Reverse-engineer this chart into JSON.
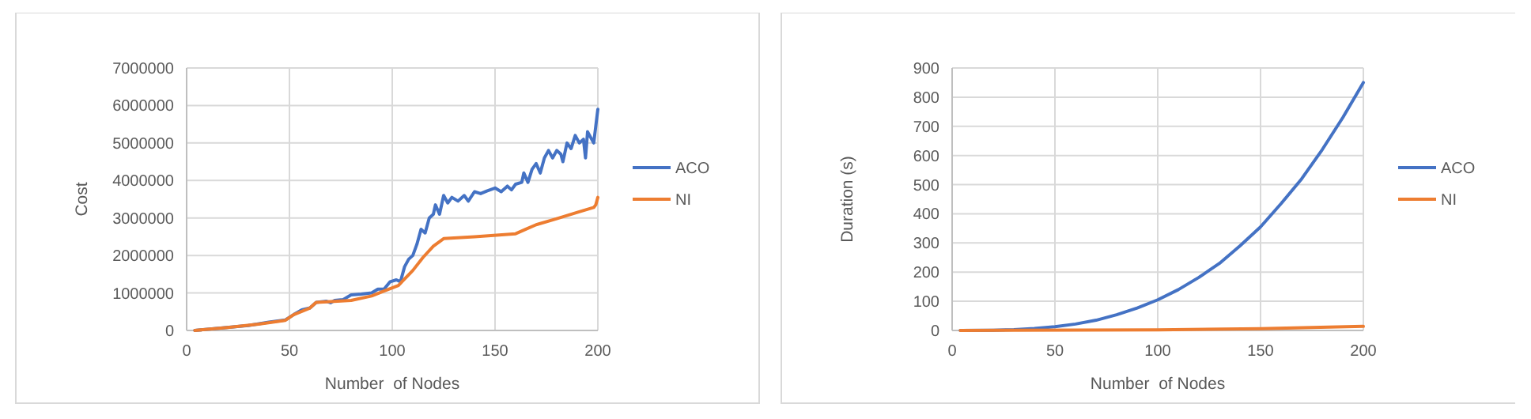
{
  "chart_data": [
    {
      "type": "line",
      "xlabel": "Number  of Nodes",
      "ylabel": "Cost",
      "xlim": [
        0,
        200
      ],
      "xticks": [
        0,
        50,
        100,
        150,
        200
      ],
      "ylim": [
        0,
        7000000
      ],
      "yticks": [
        0,
        1000000,
        2000000,
        3000000,
        4000000,
        5000000,
        6000000,
        7000000
      ],
      "grid": true,
      "legend": "right",
      "marker": "none",
      "line_style": "solid",
      "series": [
        {
          "name": "ACO",
          "color": "#4472c4",
          "x": [
            4,
            30,
            40,
            48,
            52,
            56,
            60,
            63,
            68,
            70,
            72,
            76,
            80,
            85,
            90,
            93,
            96,
            99,
            102,
            104,
            106,
            108,
            110,
            112,
            114,
            116,
            118,
            120,
            121,
            123,
            125,
            127,
            129,
            132,
            135,
            137,
            140,
            143,
            146,
            150,
            153,
            156,
            158,
            160,
            163,
            164,
            166,
            168,
            170,
            172,
            174,
            176,
            178,
            180,
            182,
            183,
            185,
            187,
            189,
            191,
            193,
            194,
            195,
            197,
            198,
            199,
            200
          ],
          "values": [
            0,
            130000,
            220000,
            280000,
            420000,
            550000,
            600000,
            750000,
            780000,
            740000,
            800000,
            820000,
            950000,
            970000,
            1000000,
            1100000,
            1100000,
            1300000,
            1350000,
            1300000,
            1700000,
            1900000,
            2000000,
            2300000,
            2700000,
            2600000,
            3000000,
            3100000,
            3350000,
            3100000,
            3600000,
            3400000,
            3550000,
            3450000,
            3600000,
            3450000,
            3700000,
            3650000,
            3720000,
            3800000,
            3700000,
            3850000,
            3750000,
            3900000,
            3950000,
            4200000,
            3950000,
            4300000,
            4450000,
            4200000,
            4600000,
            4800000,
            4600000,
            4800000,
            4700000,
            4500000,
            5000000,
            4850000,
            5200000,
            5000000,
            5100000,
            4600000,
            5300000,
            5100000,
            5000000,
            5450000,
            5900000
          ]
        },
        {
          "name": "NI",
          "color": "#ed7d31",
          "x": [
            4,
            20,
            35,
            48,
            52,
            60,
            63,
            70,
            80,
            90,
            96,
            103,
            110,
            115,
            120,
            125,
            140,
            160,
            165,
            170,
            180,
            190,
            198,
            199,
            200
          ],
          "values": [
            0,
            80000,
            170000,
            270000,
            420000,
            600000,
            750000,
            770000,
            800000,
            920000,
            1050000,
            1200000,
            1600000,
            1950000,
            2250000,
            2450000,
            2500000,
            2580000,
            2700000,
            2820000,
            2980000,
            3150000,
            3280000,
            3350000,
            3550000
          ]
        }
      ]
    },
    {
      "type": "line",
      "xlabel": "Number  of Nodes",
      "ylabel": "Duration (s)",
      "xlim": [
        0,
        200
      ],
      "xticks": [
        0,
        50,
        100,
        150,
        200
      ],
      "ylim": [
        0,
        900
      ],
      "yticks": [
        0,
        100,
        200,
        300,
        400,
        500,
        600,
        700,
        800,
        900
      ],
      "grid": true,
      "legend": "right",
      "marker": "none",
      "line_style": "solid",
      "series": [
        {
          "name": "ACO",
          "color": "#4472c4",
          "x": [
            4,
            20,
            30,
            40,
            50,
            60,
            70,
            80,
            90,
            100,
            110,
            120,
            130,
            140,
            150,
            160,
            170,
            180,
            190,
            200
          ],
          "values": [
            0,
            1,
            3,
            7,
            13,
            22,
            35,
            54,
            77,
            105,
            140,
            182,
            230,
            290,
            355,
            435,
            520,
            620,
            730,
            850
          ]
        },
        {
          "name": "NI",
          "color": "#ed7d31",
          "x": [
            4,
            100,
            150,
            200
          ],
          "values": [
            0,
            2,
            6,
            14
          ]
        }
      ]
    }
  ]
}
